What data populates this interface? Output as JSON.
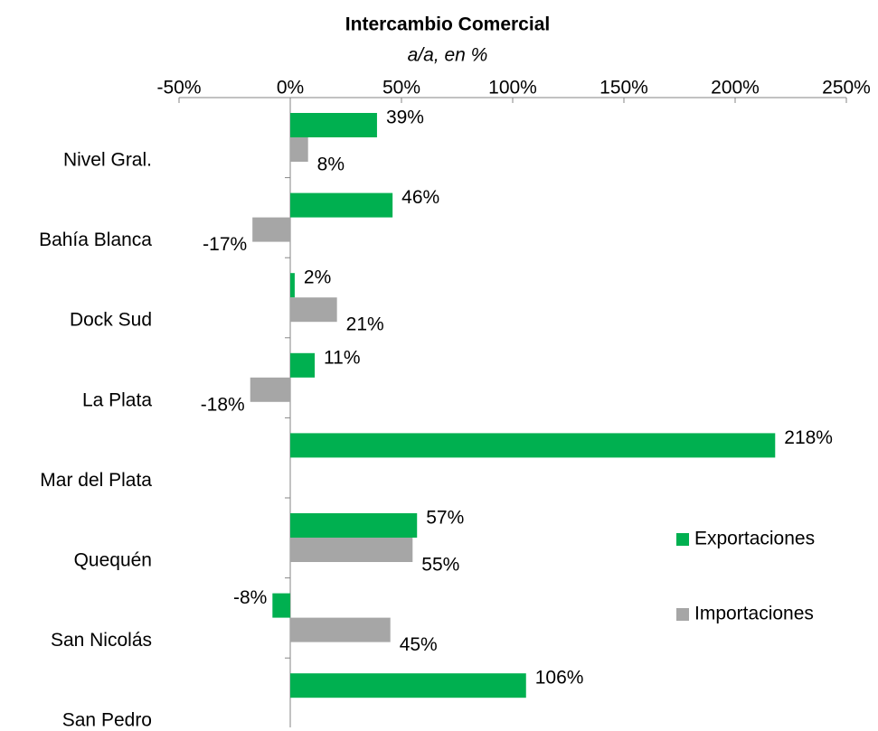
{
  "chart_data": {
    "type": "barh",
    "title": "Intercambio Comercial",
    "subtitle": "a/a, en %",
    "categories": [
      "Nivel Gral.",
      "Bahía Blanca",
      "Dock Sud",
      "La Plata",
      "Mar del Plata",
      "Quequén",
      "San Nicolás",
      "San Pedro"
    ],
    "series": [
      {
        "name": "Exportaciones",
        "color": "#00b050",
        "values": [
          39,
          46,
          2,
          11,
          218,
          57,
          -8,
          106
        ],
        "value_labels": [
          "39%",
          "46%",
          "2%",
          "11%",
          "218%",
          "57%",
          "-8%",
          "106%"
        ]
      },
      {
        "name": "Importaciones",
        "color": "#a6a6a6",
        "values": [
          8,
          -17,
          21,
          -18,
          null,
          55,
          45,
          null
        ],
        "value_labels": [
          "8%",
          "-17%",
          "21%",
          "-18%",
          null,
          "55%",
          "45%",
          null
        ]
      }
    ],
    "xlim": [
      -50,
      250
    ],
    "xticks": [
      {
        "value": -50,
        "label": "-50%"
      },
      {
        "value": 0,
        "label": "0%"
      },
      {
        "value": 50,
        "label": "50%"
      },
      {
        "value": 100,
        "label": "100%"
      },
      {
        "value": 150,
        "label": "150%"
      },
      {
        "value": 200,
        "label": "200%"
      },
      {
        "value": 250,
        "label": "250%"
      }
    ],
    "legend": "right"
  }
}
